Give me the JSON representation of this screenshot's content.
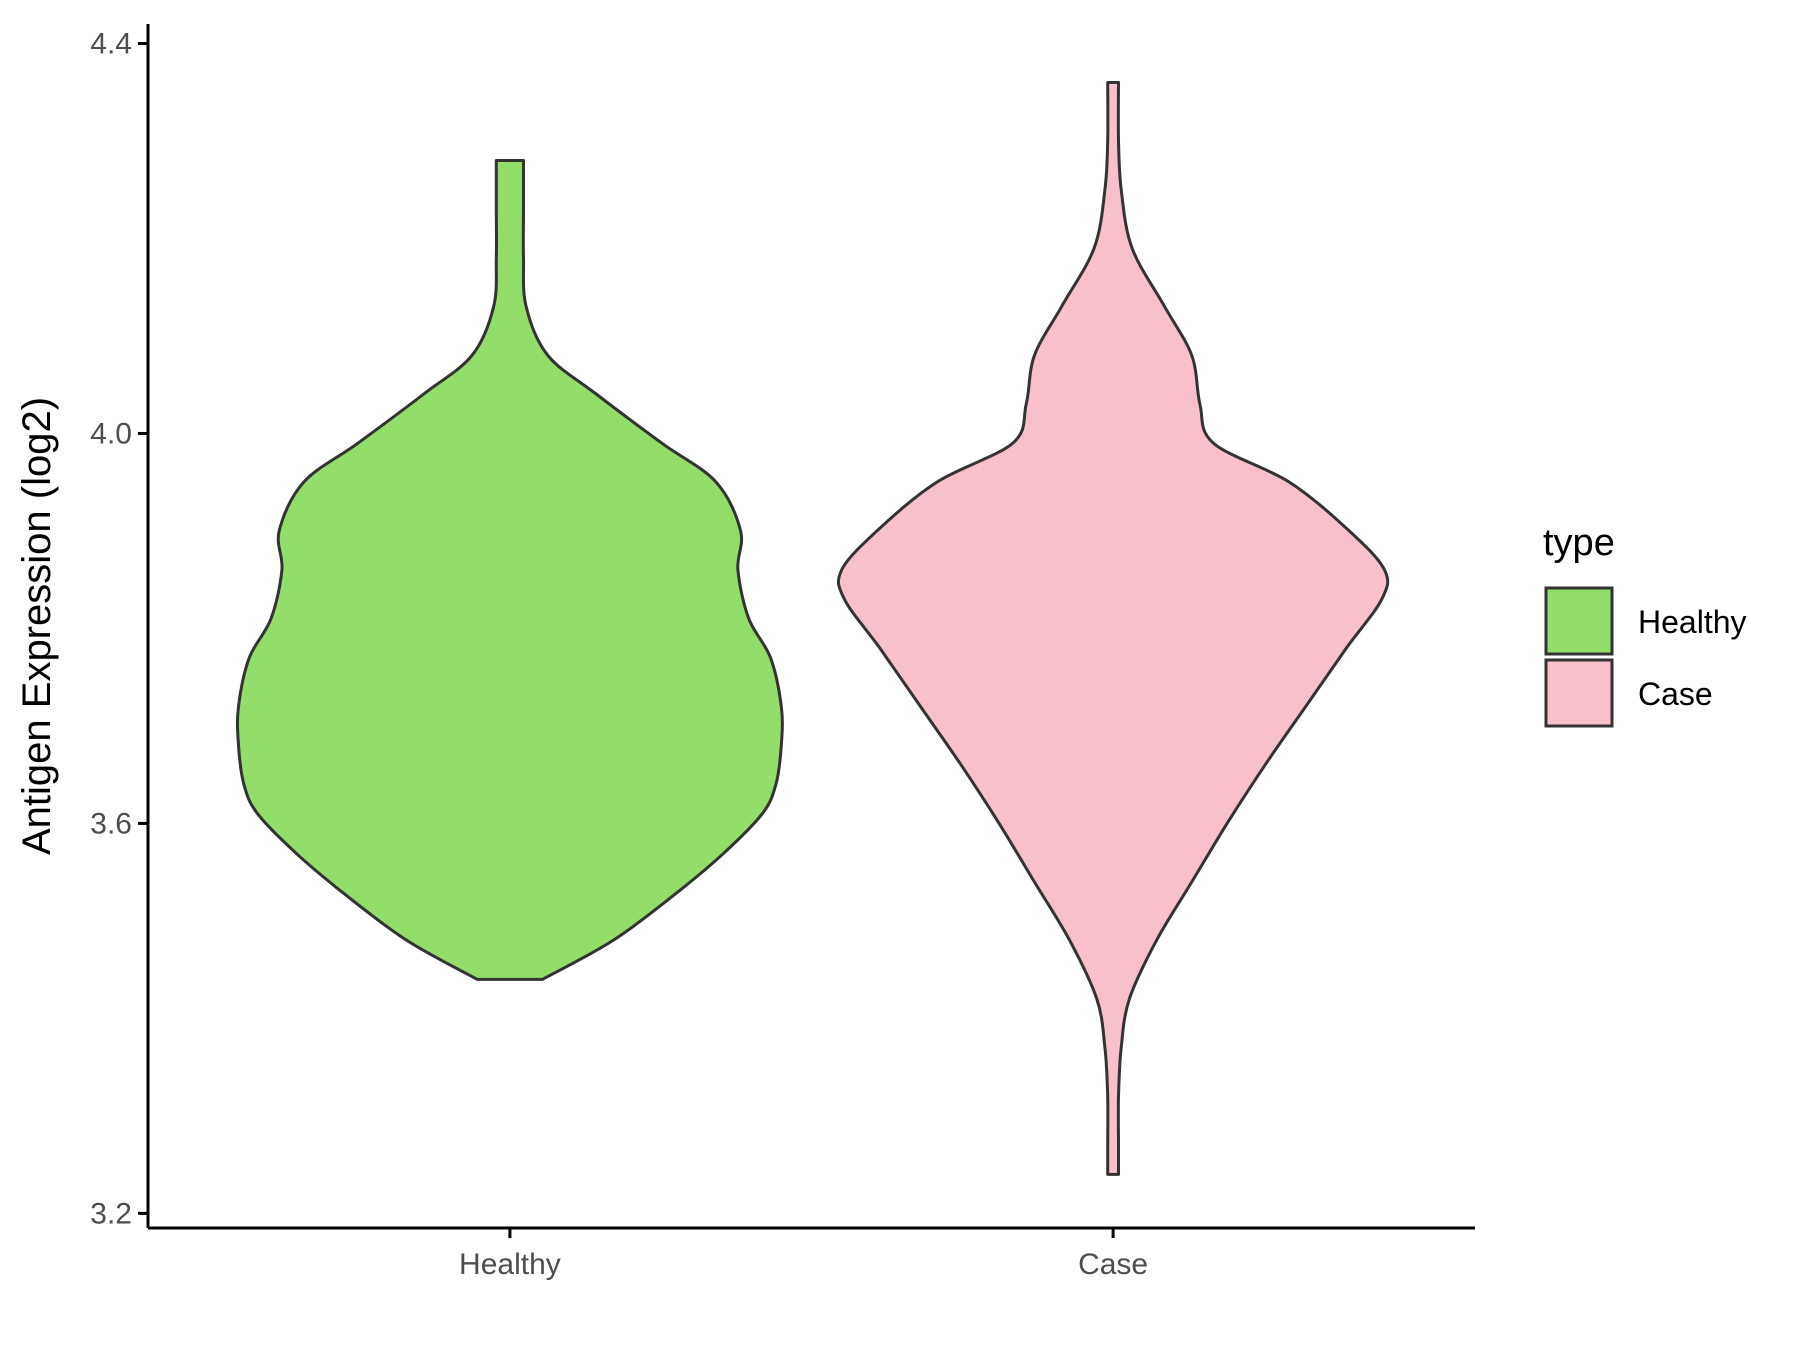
{
  "chart_data": {
    "type": "violin",
    "title": "",
    "xlabel": "",
    "ylabel": "Antigen Expression (log2)",
    "ylim": [
      3.185,
      4.42
    ],
    "yticks": [
      3.2,
      3.6,
      4.0,
      4.4
    ],
    "ytick_labels": [
      "3.2",
      "3.6",
      "4.0",
      "4.4"
    ],
    "categories": [
      "Healthy",
      "Case"
    ],
    "grid": false,
    "legend": {
      "title": "type",
      "position": "right",
      "entries": [
        "Healthy",
        "Case"
      ]
    },
    "series": [
      {
        "name": "Healthy",
        "color": "#93dd6b",
        "min": 3.44,
        "max": 4.28,
        "density_profile": [
          [
            3.44,
            0.12
          ],
          [
            3.48,
            0.38
          ],
          [
            3.53,
            0.62
          ],
          [
            3.57,
            0.79
          ],
          [
            3.61,
            0.93
          ],
          [
            3.64,
            0.98
          ],
          [
            3.68,
            1.0
          ],
          [
            3.72,
            1.0
          ],
          [
            3.77,
            0.96
          ],
          [
            3.81,
            0.88
          ],
          [
            3.86,
            0.84
          ],
          [
            3.9,
            0.85
          ],
          [
            3.95,
            0.76
          ],
          [
            3.99,
            0.56
          ],
          [
            4.04,
            0.32
          ],
          [
            4.08,
            0.14
          ],
          [
            4.13,
            0.06
          ],
          [
            4.18,
            0.05
          ],
          [
            4.23,
            0.05
          ],
          [
            4.28,
            0.05
          ]
        ]
      },
      {
        "name": "Case",
        "color": "#f8c0cb",
        "min": 3.24,
        "max": 4.36,
        "density_profile": [
          [
            3.24,
            0.02
          ],
          [
            3.27,
            0.02
          ],
          [
            3.32,
            0.02
          ],
          [
            3.37,
            0.03
          ],
          [
            3.42,
            0.06
          ],
          [
            3.48,
            0.16
          ],
          [
            3.54,
            0.29
          ],
          [
            3.6,
            0.42
          ],
          [
            3.66,
            0.56
          ],
          [
            3.72,
            0.71
          ],
          [
            3.78,
            0.86
          ],
          [
            3.83,
            0.99
          ],
          [
            3.86,
            1.0
          ],
          [
            3.9,
            0.87
          ],
          [
            3.95,
            0.65
          ],
          [
            3.99,
            0.37
          ],
          [
            4.03,
            0.32
          ],
          [
            4.08,
            0.29
          ],
          [
            4.13,
            0.19
          ],
          [
            4.19,
            0.07
          ],
          [
            4.25,
            0.03
          ],
          [
            4.3,
            0.02
          ],
          [
            4.36,
            0.02
          ]
        ]
      }
    ]
  }
}
